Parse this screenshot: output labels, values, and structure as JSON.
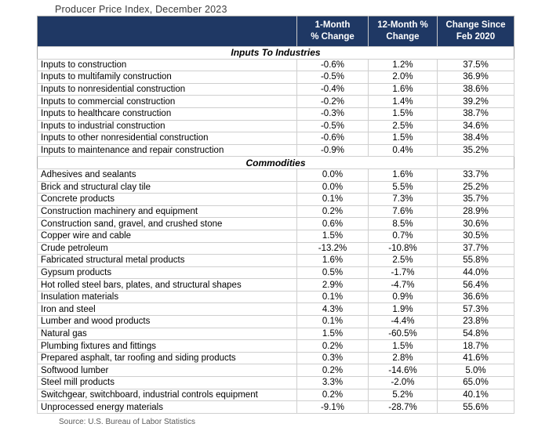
{
  "title": "Producer Price Index, December 2023",
  "source": "Source: U.S. Bureau of Labor Statistics",
  "colors": {
    "header_bg": "#1f3864",
    "header_text": "#ffffff",
    "grid_line": "#cfcfcf",
    "title_text": "#3c3c3c",
    "source_text": "#5a5a5a"
  },
  "header": {
    "blank": "",
    "col1": "1-Month\n% Change",
    "col2": "12-Month %\nChange",
    "col3": "Change Since\nFeb 2020"
  },
  "chart_data": {
    "type": "table",
    "title": "Producer Price Index, December 2023",
    "columns": [
      "1-Month % Change",
      "12-Month % Change",
      "Change Since Feb 2020"
    ],
    "sections": [
      {
        "label": "Inputs To Industries",
        "rows": [
          [
            "Inputs to construction",
            "-0.6%",
            "1.2%",
            "37.5%"
          ],
          [
            "Inputs to multifamily construction",
            "-0.5%",
            "2.0%",
            "36.9%"
          ],
          [
            "Inputs to nonresidential construction",
            "-0.4%",
            "1.6%",
            "38.6%"
          ],
          [
            "Inputs to commercial construction",
            "-0.2%",
            "1.4%",
            "39.2%"
          ],
          [
            "Inputs to healthcare construction",
            "-0.3%",
            "1.5%",
            "38.7%"
          ],
          [
            "Inputs to industrial construction",
            "-0.5%",
            "2.5%",
            "34.6%"
          ],
          [
            "Inputs to other nonresidential construction",
            "-0.6%",
            "1.5%",
            "38.4%"
          ],
          [
            "Inputs to maintenance and repair construction",
            "-0.9%",
            "0.4%",
            "35.2%"
          ]
        ]
      },
      {
        "label": "Commodities",
        "rows": [
          [
            "Adhesives and sealants",
            "0.0%",
            "1.6%",
            "33.7%"
          ],
          [
            "Brick and structural clay tile",
            "0.0%",
            "5.5%",
            "25.2%"
          ],
          [
            "Concrete products",
            "0.1%",
            "7.3%",
            "35.7%"
          ],
          [
            "Construction machinery and equipment",
            "0.2%",
            "7.6%",
            "28.9%"
          ],
          [
            "Construction sand, gravel, and crushed stone",
            "0.6%",
            "8.5%",
            "30.6%"
          ],
          [
            "Copper wire and cable",
            "1.5%",
            "0.7%",
            "30.5%"
          ],
          [
            "Crude petroleum",
            "-13.2%",
            "-10.8%",
            "37.7%"
          ],
          [
            "Fabricated structural metal products",
            "1.6%",
            "2.5%",
            "55.8%"
          ],
          [
            "Gypsum products",
            "0.5%",
            "-1.7%",
            "44.0%"
          ],
          [
            "Hot rolled steel bars, plates, and structural shapes",
            "2.9%",
            "-4.7%",
            "56.4%"
          ],
          [
            "Insulation materials",
            "0.1%",
            "0.9%",
            "36.6%"
          ],
          [
            "Iron and steel",
            "4.3%",
            "1.9%",
            "57.3%"
          ],
          [
            "Lumber and wood products",
            "0.1%",
            "-4.4%",
            "23.8%"
          ],
          [
            "Natural gas",
            "1.5%",
            "-60.5%",
            "54.8%"
          ],
          [
            "Plumbing fixtures and fittings",
            "0.2%",
            "1.5%",
            "18.7%"
          ],
          [
            "Prepared asphalt, tar roofing and siding products",
            "0.3%",
            "2.8%",
            "41.6%"
          ],
          [
            "Softwood lumber",
            "0.2%",
            "-14.6%",
            "5.0%"
          ],
          [
            "Steel mill products",
            "3.3%",
            "-2.0%",
            "65.0%"
          ],
          [
            "Switchgear, switchboard, industrial controls equipment",
            "0.2%",
            "5.2%",
            "40.1%"
          ],
          [
            "Unprocessed energy materials",
            "-9.1%",
            "-28.7%",
            "55.6%"
          ]
        ]
      }
    ],
    "source": "Source: U.S. Bureau of Labor Statistics"
  }
}
